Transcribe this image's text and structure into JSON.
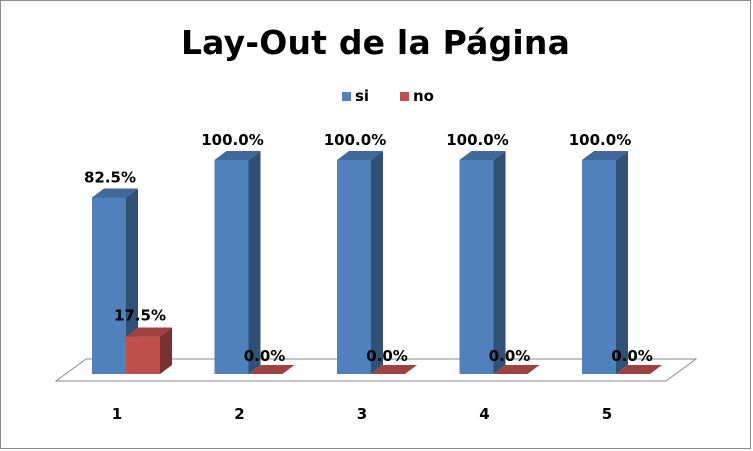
{
  "chart_data": {
    "type": "bar",
    "title": "Lay-Out de la Página",
    "categories": [
      "1",
      "2",
      "3",
      "4",
      "5"
    ],
    "series": [
      {
        "name": "si",
        "color": "#4f81bd",
        "values": [
          82.5,
          100.0,
          100.0,
          100.0,
          100.0
        ],
        "labels": [
          "82.5%",
          "100.0%",
          "100.0%",
          "100.0%",
          "100.0%"
        ]
      },
      {
        "name": "no",
        "color": "#c0504d",
        "values": [
          17.5,
          0.0,
          0.0,
          0.0,
          0.0
        ],
        "labels": [
          "17.5%",
          "0.0%",
          "0.0%",
          "0.0%",
          "0.0%"
        ]
      }
    ],
    "ylim": [
      0,
      100
    ],
    "xlabel": "",
    "ylabel": "",
    "grid": false,
    "legend_position": "top",
    "style": "3d-clustered-column"
  }
}
